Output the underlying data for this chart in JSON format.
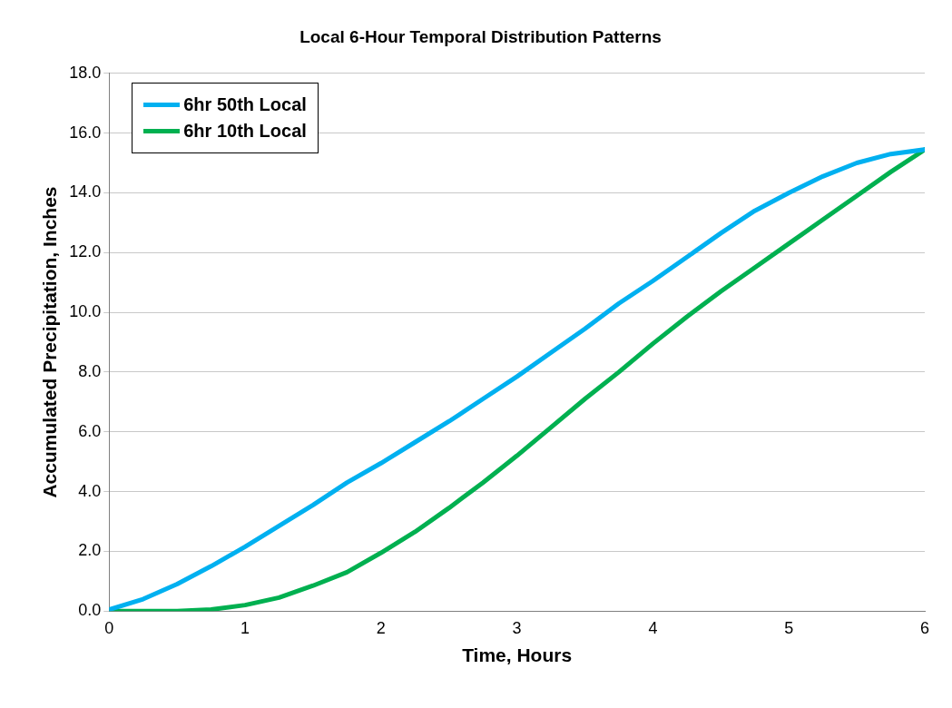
{
  "chart_data": {
    "type": "line",
    "title": "Local 6-Hour Temporal Distribution Patterns",
    "xlabel": "Time, Hours",
    "ylabel": "Accumulated Precipitation, Inches",
    "x": [
      0,
      0.25,
      0.5,
      0.75,
      1,
      1.25,
      1.5,
      1.75,
      2,
      2.25,
      2.5,
      2.75,
      3,
      3.25,
      3.5,
      3.75,
      4,
      4.25,
      4.5,
      4.75,
      5,
      5.25,
      5.5,
      5.75,
      6
    ],
    "series": [
      {
        "name": "6hr 50th Local",
        "color": "#00b0f0",
        "values": [
          0.05,
          0.4,
          0.9,
          1.5,
          2.15,
          2.85,
          3.55,
          4.3,
          4.95,
          5.65,
          6.35,
          7.1,
          7.85,
          8.65,
          9.45,
          10.3,
          11.05,
          11.85,
          12.65,
          13.4,
          14.0,
          14.55,
          15.0,
          15.3,
          15.45
        ]
      },
      {
        "name": "6hr 10th Local",
        "color": "#00b050",
        "values": [
          0,
          0,
          0,
          0.05,
          0.2,
          0.45,
          0.85,
          1.3,
          1.95,
          2.65,
          3.45,
          4.3,
          5.2,
          6.15,
          7.1,
          8.0,
          8.95,
          9.85,
          10.7,
          11.5,
          12.3,
          13.1,
          13.9,
          14.7,
          15.45
        ]
      }
    ],
    "xlim": [
      0,
      6
    ],
    "xticks": [
      0,
      1,
      2,
      3,
      4,
      5,
      6
    ],
    "ylim": [
      0,
      18
    ],
    "yticks": [
      {
        "value": 0,
        "label": "0.0"
      },
      {
        "value": 2,
        "label": "2.0"
      },
      {
        "value": 4,
        "label": "4.0"
      },
      {
        "value": 6,
        "label": "6.0"
      },
      {
        "value": 8,
        "label": "8.0"
      },
      {
        "value": 10,
        "label": "10.0"
      },
      {
        "value": 12,
        "label": "12.0"
      },
      {
        "value": 14,
        "label": "14.0"
      },
      {
        "value": 16,
        "label": "16.0"
      },
      {
        "value": 18,
        "label": "18.0"
      }
    ],
    "grid": "y",
    "legend": "top left",
    "marker": "none",
    "line_style": "solid"
  }
}
